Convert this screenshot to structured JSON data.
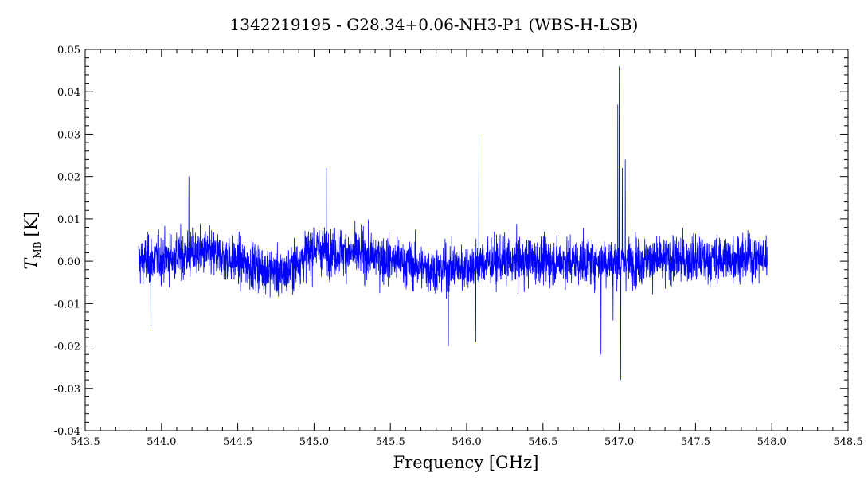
{
  "chart_data": {
    "type": "line",
    "title": "1342219195 - G28.34+0.06-NH3-P1 (WBS-H-LSB)",
    "xlabel": "Frequency [GHz]",
    "ylabel_main": "T",
    "ylabel_sub": "MB",
    "ylabel_unit": "[K]",
    "xlim": [
      543.5,
      548.5
    ],
    "ylim": [
      -0.04,
      0.05
    ],
    "x_ticks": [
      "543.5",
      "544.0",
      "544.5",
      "545.0",
      "545.5",
      "546.0",
      "546.5",
      "547.0",
      "547.5",
      "548.0",
      "548.5"
    ],
    "y_ticks": [
      "0.05",
      "0.04",
      "0.03",
      "0.02",
      "0.01",
      "0.00",
      "-0.01",
      "-0.02",
      "-0.03",
      "-0.04"
    ],
    "series_color": "#0000ff",
    "series": [
      {
        "x_range": [
          543.85,
          547.97
        ],
        "noise_rms": 0.0055,
        "baseline": [
          [
            543.85,
            0.0
          ],
          [
            544.3,
            0.002
          ],
          [
            544.8,
            -0.003
          ],
          [
            545.0,
            0.003
          ],
          [
            545.4,
            0.001
          ],
          [
            545.8,
            -0.002
          ],
          [
            546.2,
            0.0
          ],
          [
            546.6,
            0.0
          ],
          [
            547.2,
            0.0
          ],
          [
            547.97,
            0.001
          ]
        ],
        "features": [
          {
            "x": 547.0,
            "y": 0.046
          },
          {
            "x": 546.99,
            "y": 0.037
          },
          {
            "x": 547.02,
            "y": 0.022
          },
          {
            "x": 547.04,
            "y": 0.024
          },
          {
            "x": 547.01,
            "y": -0.028
          },
          {
            "x": 546.96,
            "y": -0.014
          },
          {
            "x": 546.08,
            "y": 0.03
          },
          {
            "x": 546.88,
            "y": -0.022
          },
          {
            "x": 545.88,
            "y": -0.02
          },
          {
            "x": 546.06,
            "y": -0.019
          },
          {
            "x": 544.18,
            "y": 0.02
          },
          {
            "x": 545.08,
            "y": 0.022
          },
          {
            "x": 543.93,
            "y": -0.016
          }
        ]
      }
    ],
    "grid": false
  }
}
